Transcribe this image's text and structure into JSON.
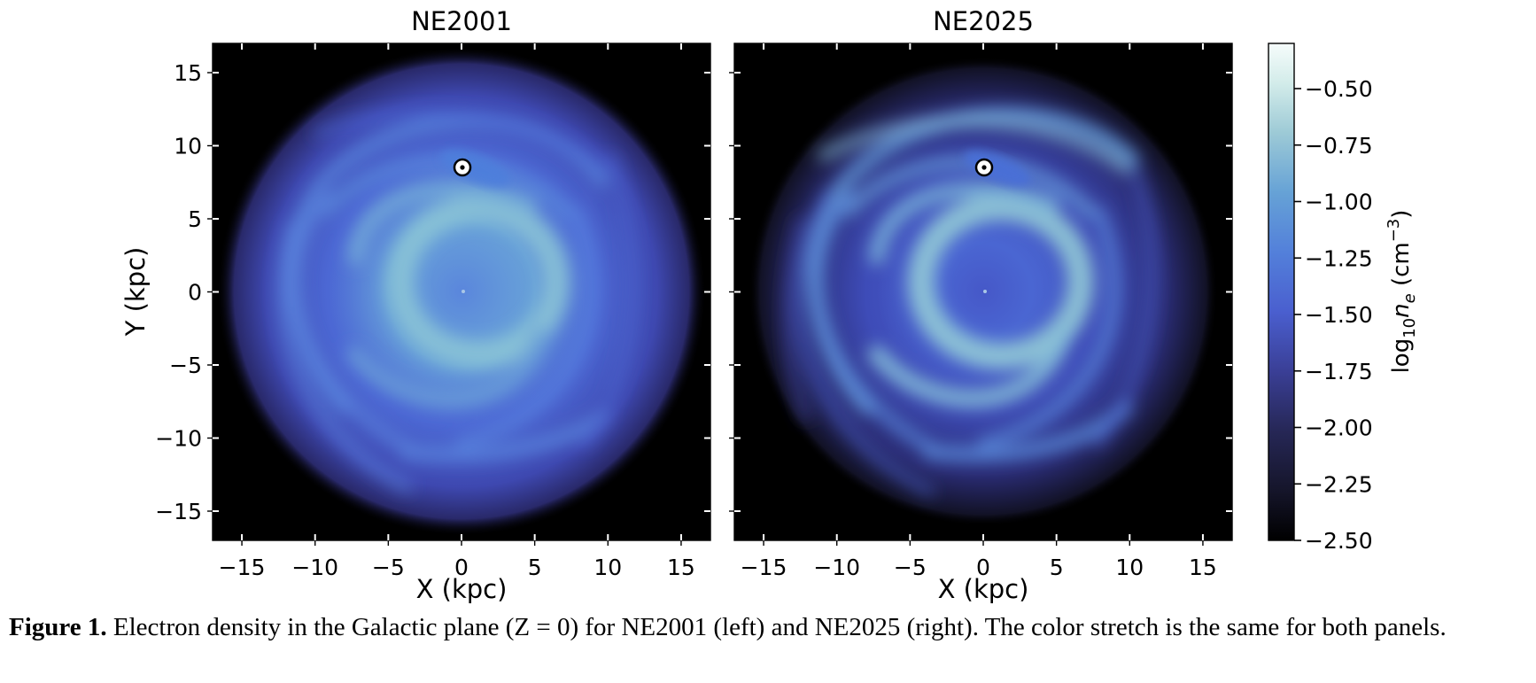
{
  "chart_data": [
    {
      "type": "heatmap",
      "title": "NE2001",
      "xlabel": "X (kpc)",
      "ylabel": "Y (kpc)",
      "xlim": [
        -17,
        17
      ],
      "ylim": [
        -17,
        17
      ],
      "x_ticks": [
        -15,
        -10,
        -5,
        0,
        5,
        10,
        15
      ],
      "y_ticks": [
        -15,
        -10,
        -5,
        0,
        5,
        10,
        15
      ],
      "x_tick_labels": [
        "−15",
        "−10",
        "−5",
        "0",
        "5",
        "10",
        "15"
      ],
      "y_tick_labels": [
        "−15",
        "−10",
        "−5",
        "0",
        "5",
        "10",
        "15"
      ],
      "sun_position": [
        0,
        8.5
      ],
      "grid": false,
      "background_color": "#000000"
    },
    {
      "type": "heatmap",
      "title": "NE2025",
      "xlabel": "X (kpc)",
      "ylabel": "",
      "xlim": [
        -17,
        17
      ],
      "ylim": [
        -17,
        17
      ],
      "x_ticks": [
        -15,
        -10,
        -5,
        0,
        5,
        10,
        15
      ],
      "y_ticks": [
        -15,
        -10,
        -5,
        0,
        5,
        10,
        15
      ],
      "x_tick_labels": [
        "−15",
        "−10",
        "−5",
        "0",
        "5",
        "10",
        "15"
      ],
      "y_tick_labels": [],
      "sun_position": [
        0,
        8.5
      ],
      "grid": false,
      "background_color": "#000000"
    }
  ],
  "colorbar": {
    "label_main": "log",
    "label_sub": "10",
    "label_var": "n",
    "label_var_sub": "e",
    "label_unit_open": " (cm",
    "label_unit_exp": "−3",
    "label_unit_close": ")",
    "range": [
      -2.5,
      -0.3
    ],
    "ticks": [
      -0.5,
      -0.75,
      -1.0,
      -1.25,
      -1.5,
      -1.75,
      -2.0,
      -2.25,
      -2.5
    ],
    "tick_labels": [
      "−0.50",
      "−0.75",
      "−1.00",
      "−1.25",
      "−1.50",
      "−1.75",
      "−2.00",
      "−2.25",
      "−2.50"
    ],
    "colors": [
      "#000000",
      "#1b1a33",
      "#2e2f6b",
      "#3a48b8",
      "#4a66d8",
      "#5b8ad8",
      "#7ab0d2",
      "#b9dad8",
      "#f2fbfa"
    ]
  },
  "caption": {
    "label": "Figure 1.",
    "text": " Electron density in the Galactic plane (Z = 0) for NE2001 (left) and NE2025 (right). The color stretch is the same for both panels."
  }
}
